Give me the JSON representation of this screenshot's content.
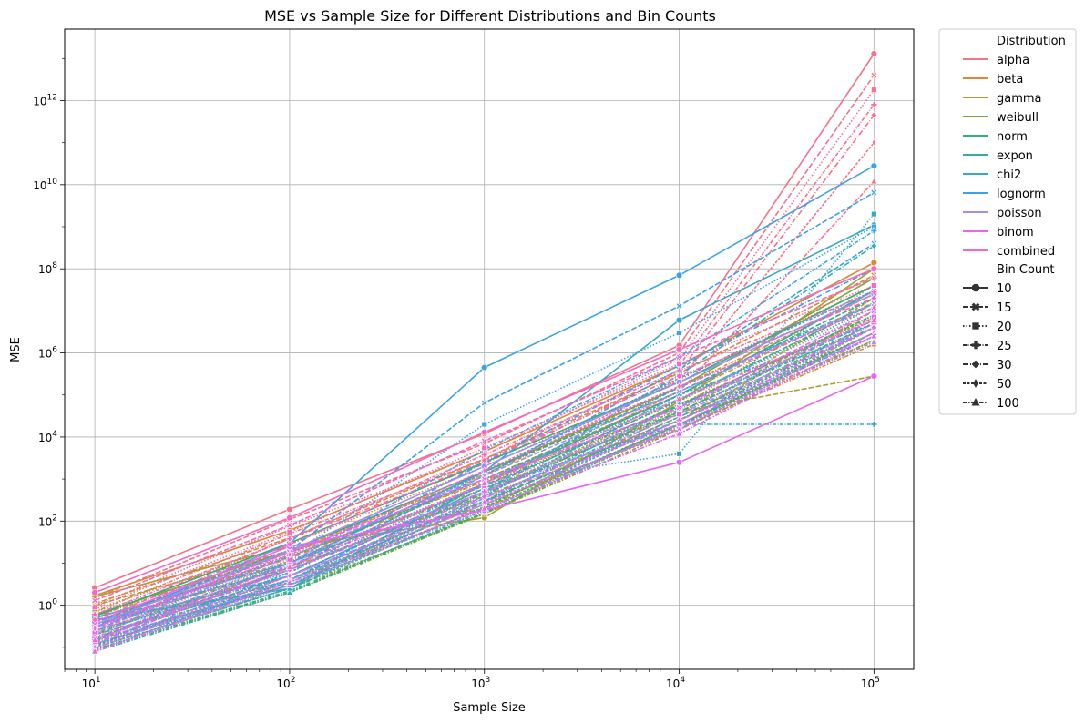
{
  "chart_data": {
    "type": "line",
    "title": "MSE vs Sample Size for Different Distributions and Bin Counts",
    "xlabel": "Sample Size",
    "ylabel": "MSE",
    "xscale": "log",
    "yscale": "log",
    "x": [
      10,
      100,
      1000,
      10000,
      100000
    ],
    "xticks": [
      {
        "value": 10,
        "base": "10",
        "exp": "1"
      },
      {
        "value": 100,
        "base": "10",
        "exp": "2"
      },
      {
        "value": 1000,
        "base": "10",
        "exp": "3"
      },
      {
        "value": 10000,
        "base": "10",
        "exp": "4"
      },
      {
        "value": 100000,
        "base": "10",
        "exp": "5"
      }
    ],
    "yticks": [
      {
        "value": 1,
        "base": "10",
        "exp": "0"
      },
      {
        "value": 100,
        "base": "10",
        "exp": "2"
      },
      {
        "value": 10000,
        "base": "10",
        "exp": "4"
      },
      {
        "value": 1000000,
        "base": "10",
        "exp": "6"
      },
      {
        "value": 100000000,
        "base": "10",
        "exp": "8"
      },
      {
        "value": 10000000000,
        "base": "10",
        "exp": "10"
      },
      {
        "value": 1000000000000,
        "base": "10",
        "exp": "12"
      }
    ],
    "xlim": [
      7,
      160000
    ],
    "ylim": [
      0.03,
      50000000000000
    ],
    "grid": true,
    "legend_position": "outside-right",
    "legend": {
      "hue_title": "Distribution",
      "style_title": "Bin Count",
      "distributions": [
        {
          "name": "alpha",
          "color": "#f77189"
        },
        {
          "name": "beta",
          "color": "#dc8932"
        },
        {
          "name": "gamma",
          "color": "#ae9d31"
        },
        {
          "name": "weibull",
          "color": "#77ab31"
        },
        {
          "name": "norm",
          "color": "#33b07a"
        },
        {
          "name": "expon",
          "color": "#36ada4"
        },
        {
          "name": "chi2",
          "color": "#38a9c5"
        },
        {
          "name": "lognorm",
          "color": "#3ba3ec"
        },
        {
          "name": "poisson",
          "color": "#a48cf4"
        },
        {
          "name": "binom",
          "color": "#e866f4"
        },
        {
          "name": "combined",
          "color": "#f668c2"
        }
      ],
      "bin_counts": [
        {
          "name": "10",
          "marker": "circle",
          "dash": ""
        },
        {
          "name": "15",
          "marker": "x",
          "dash": "6,2"
        },
        {
          "name": "20",
          "marker": "square",
          "dash": "1.5,2"
        },
        {
          "name": "25",
          "marker": "plus",
          "dash": "4,1.5,1,1.5"
        },
        {
          "name": "30",
          "marker": "diamond",
          "dash": "6,2,1,2"
        },
        {
          "name": "50",
          "marker": "thin-diamond",
          "dash": "3,1.5"
        },
        {
          "name": "100",
          "marker": "triangle",
          "dash": "4.5,1.5,1.5,1.5"
        }
      ]
    },
    "series": [
      {
        "dist": "alpha",
        "bin": "10",
        "y": [
          2.6,
          190,
          12000,
          1500000,
          13000000000000
        ]
      },
      {
        "dist": "alpha",
        "bin": "15",
        "y": [
          1.5,
          110,
          7000,
          1000000,
          4000000000000
        ]
      },
      {
        "dist": "alpha",
        "bin": "20",
        "y": [
          1.0,
          75,
          4500,
          700000,
          1800000000000
        ]
      },
      {
        "dist": "alpha",
        "bin": "25",
        "y": [
          0.7,
          50,
          3000,
          500000,
          800000000000
        ]
      },
      {
        "dist": "alpha",
        "bin": "30",
        "y": [
          0.5,
          38,
          2300,
          350000,
          450000000000
        ]
      },
      {
        "dist": "alpha",
        "bin": "50",
        "y": [
          0.28,
          20,
          1300,
          220000,
          100000000000
        ]
      },
      {
        "dist": "alpha",
        "bin": "100",
        "y": [
          0.14,
          10,
          700,
          120000,
          12000000000
        ]
      },
      {
        "dist": "beta",
        "bin": "10",
        "y": [
          1.7,
          60,
          4500,
          500000,
          140000000
        ]
      },
      {
        "dist": "beta",
        "bin": "15",
        "y": [
          1.1,
          40,
          3000,
          330000,
          70000000
        ]
      },
      {
        "dist": "beta",
        "bin": "20",
        "y": [
          0.8,
          28,
          2000,
          230000,
          40000000
        ]
      },
      {
        "dist": "beta",
        "bin": "25",
        "y": [
          0.55,
          18,
          1300,
          150000,
          25000000
        ]
      },
      {
        "dist": "beta",
        "bin": "30",
        "y": [
          0.42,
          13,
          900,
          100000,
          16000000
        ]
      },
      {
        "dist": "beta",
        "bin": "50",
        "y": [
          0.25,
          7,
          500,
          60000,
          7000000
        ]
      },
      {
        "dist": "beta",
        "bin": "100",
        "y": [
          0.12,
          3.5,
          250,
          16000,
          1600000
        ]
      },
      {
        "dist": "gamma",
        "bin": "10",
        "y": [
          1.6,
          25,
          120,
          70000,
          100000000
        ]
      },
      {
        "dist": "gamma",
        "bin": "15",
        "y": [
          1.0,
          20,
          200,
          40000,
          280000
        ]
      },
      {
        "dist": "gamma",
        "bin": "20",
        "y": [
          0.7,
          15,
          900,
          50000,
          40000000
        ]
      },
      {
        "dist": "gamma",
        "bin": "25",
        "y": [
          0.5,
          11,
          600,
          35000,
          20000000
        ]
      },
      {
        "dist": "gamma",
        "bin": "30",
        "y": [
          0.35,
          8,
          400,
          25000,
          10000000
        ]
      },
      {
        "dist": "gamma",
        "bin": "50",
        "y": [
          0.2,
          4,
          250,
          15000,
          4000000
        ]
      },
      {
        "dist": "gamma",
        "bin": "100",
        "y": [
          0.1,
          2.5,
          150,
          20000,
          2000000
        ]
      },
      {
        "dist": "weibull",
        "bin": "10",
        "y": [
          0.6,
          20,
          1500,
          150000,
          60000000
        ]
      },
      {
        "dist": "weibull",
        "bin": "15",
        "y": [
          0.4,
          14,
          1000,
          100000,
          30000000
        ]
      },
      {
        "dist": "weibull",
        "bin": "20",
        "y": [
          0.3,
          10,
          700,
          70000,
          15000000
        ]
      },
      {
        "dist": "weibull",
        "bin": "25",
        "y": [
          0.22,
          7,
          450,
          45000,
          8000000
        ]
      },
      {
        "dist": "weibull",
        "bin": "30",
        "y": [
          0.17,
          5,
          300,
          30000,
          5000000
        ]
      },
      {
        "dist": "weibull",
        "bin": "50",
        "y": [
          0.12,
          3,
          200,
          20000,
          3000000
        ]
      },
      {
        "dist": "weibull",
        "bin": "100",
        "y": [
          0.09,
          2,
          150,
          15000,
          2000000
        ]
      },
      {
        "dist": "norm",
        "bin": "10",
        "y": [
          0.55,
          30,
          2500,
          200000,
          40000000
        ]
      },
      {
        "dist": "norm",
        "bin": "15",
        "y": [
          0.4,
          20,
          1500,
          120000,
          20000000
        ]
      },
      {
        "dist": "norm",
        "bin": "20",
        "y": [
          0.3,
          14,
          1000,
          80000,
          12000000
        ]
      },
      {
        "dist": "norm",
        "bin": "25",
        "y": [
          0.2,
          10,
          700,
          55000,
          8000000
        ]
      },
      {
        "dist": "norm",
        "bin": "30",
        "y": [
          0.16,
          7,
          500,
          40000,
          6000000
        ]
      },
      {
        "dist": "norm",
        "bin": "50",
        "y": [
          0.11,
          4,
          300,
          25000,
          4000000
        ]
      },
      {
        "dist": "norm",
        "bin": "100",
        "y": [
          0.09,
          2.2,
          160,
          18000,
          3000000
        ]
      },
      {
        "dist": "expon",
        "bin": "10",
        "y": [
          0.45,
          2.5,
          800,
          100000,
          30000000
        ]
      },
      {
        "dist": "expon",
        "bin": "15",
        "y": [
          0.35,
          5,
          600,
          75000,
          15000000
        ]
      },
      {
        "dist": "expon",
        "bin": "20",
        "y": [
          0.25,
          4,
          450,
          55000,
          8000000
        ]
      },
      {
        "dist": "expon",
        "bin": "25",
        "y": [
          0.18,
          3.5,
          350,
          40000,
          5000000
        ]
      },
      {
        "dist": "expon",
        "bin": "30",
        "y": [
          0.14,
          3,
          280,
          30000,
          4000000
        ]
      },
      {
        "dist": "expon",
        "bin": "50",
        "y": [
          0.1,
          2.5,
          220,
          25000,
          3000000
        ]
      },
      {
        "dist": "expon",
        "bin": "100",
        "y": [
          0.08,
          2,
          180,
          20000,
          2500000
        ]
      },
      {
        "dist": "chi2",
        "bin": "10",
        "y": [
          0.5,
          10,
          1500,
          6000000,
          1100000000
        ]
      },
      {
        "dist": "chi2",
        "bin": "15",
        "y": [
          0.4,
          8,
          1200,
          400000,
          400000000
        ]
      },
      {
        "dist": "chi2",
        "bin": "20",
        "y": [
          0.3,
          6,
          800,
          4000,
          2000000000
        ]
      },
      {
        "dist": "chi2",
        "bin": "25",
        "y": [
          0.25,
          5,
          600,
          20000,
          20000
        ]
      },
      {
        "dist": "chi2",
        "bin": "30",
        "y": [
          0.2,
          4,
          500,
          300000,
          350000000
        ]
      },
      {
        "dist": "chi2",
        "bin": "50",
        "y": [
          0.15,
          3,
          400,
          100000,
          5000000
        ]
      },
      {
        "dist": "chi2",
        "bin": "100",
        "y": [
          0.12,
          2.5,
          300,
          60000,
          4000000
        ]
      },
      {
        "dist": "lognorm",
        "bin": "10",
        "y": [
          0.3,
          30,
          450000,
          70000000,
          28000000000
        ]
      },
      {
        "dist": "lognorm",
        "bin": "15",
        "y": [
          0.25,
          20,
          65000,
          13000000,
          6500000000
        ]
      },
      {
        "dist": "lognorm",
        "bin": "20",
        "y": [
          0.2,
          15,
          20000,
          3000000,
          1000000000
        ]
      },
      {
        "dist": "lognorm",
        "bin": "25",
        "y": [
          0.15,
          10,
          5000,
          800000,
          800000000
        ]
      },
      {
        "dist": "lognorm",
        "bin": "30",
        "y": [
          0.12,
          8,
          2500,
          500000,
          100000000
        ]
      },
      {
        "dist": "lognorm",
        "bin": "50",
        "y": [
          0.1,
          6,
          1500,
          250000,
          30000000
        ]
      },
      {
        "dist": "lognorm",
        "bin": "100",
        "y": [
          0.08,
          4,
          800,
          150000,
          15000000
        ]
      },
      {
        "dist": "poisson",
        "bin": "10",
        "y": [
          0.35,
          20,
          2000,
          200000,
          25000000
        ]
      },
      {
        "dist": "poisson",
        "bin": "15",
        "y": [
          0.25,
          14,
          1200,
          120000,
          15000000
        ]
      },
      {
        "dist": "poisson",
        "bin": "20",
        "y": [
          0.2,
          10,
          800,
          80000,
          10000000
        ]
      },
      {
        "dist": "poisson",
        "bin": "25",
        "y": [
          0.15,
          7,
          500,
          50000,
          6000000
        ]
      },
      {
        "dist": "poisson",
        "bin": "30",
        "y": [
          0.12,
          5,
          350,
          35000,
          4000000
        ]
      },
      {
        "dist": "poisson",
        "bin": "50",
        "y": [
          0.1,
          4,
          250,
          25000,
          2500000
        ]
      },
      {
        "dist": "poisson",
        "bin": "100",
        "y": [
          0.08,
          3,
          180,
          18000,
          1800000
        ]
      },
      {
        "dist": "binom",
        "bin": "10",
        "y": [
          0.4,
          25,
          180,
          2500,
          280000
        ]
      },
      {
        "dist": "binom",
        "bin": "15",
        "y": [
          0.3,
          18,
          1000,
          50000,
          10000000
        ]
      },
      {
        "dist": "binom",
        "bin": "20",
        "y": [
          0.22,
          12,
          700,
          35000,
          7000000
        ]
      },
      {
        "dist": "binom",
        "bin": "25",
        "y": [
          0.17,
          9,
          500,
          25000,
          5000000
        ]
      },
      {
        "dist": "binom",
        "bin": "30",
        "y": [
          0.13,
          7,
          380,
          20000,
          4000000
        ]
      },
      {
        "dist": "binom",
        "bin": "50",
        "y": [
          0.1,
          5,
          280,
          15000,
          3000000
        ]
      },
      {
        "dist": "binom",
        "bin": "100",
        "y": [
          0.08,
          3.5,
          200,
          12000,
          2500000
        ]
      },
      {
        "dist": "combined",
        "bin": "10",
        "y": [
          2.0,
          120,
          13000,
          1200000,
          100000000
        ]
      },
      {
        "dist": "combined",
        "bin": "15",
        "y": [
          1.3,
          80,
          8000,
          800000,
          60000000
        ]
      },
      {
        "dist": "combined",
        "bin": "20",
        "y": [
          0.9,
          55,
          5500,
          550000,
          40000000
        ]
      },
      {
        "dist": "combined",
        "bin": "25",
        "y": [
          0.6,
          38,
          3800,
          380000,
          28000000
        ]
      },
      {
        "dist": "combined",
        "bin": "30",
        "y": [
          0.45,
          28,
          2800,
          280000,
          20000000
        ]
      },
      {
        "dist": "combined",
        "bin": "50",
        "y": [
          0.28,
          16,
          1600,
          160000,
          12000000
        ]
      },
      {
        "dist": "combined",
        "bin": "100",
        "y": [
          0.15,
          8,
          800,
          80000,
          6000000
        ]
      }
    ]
  }
}
